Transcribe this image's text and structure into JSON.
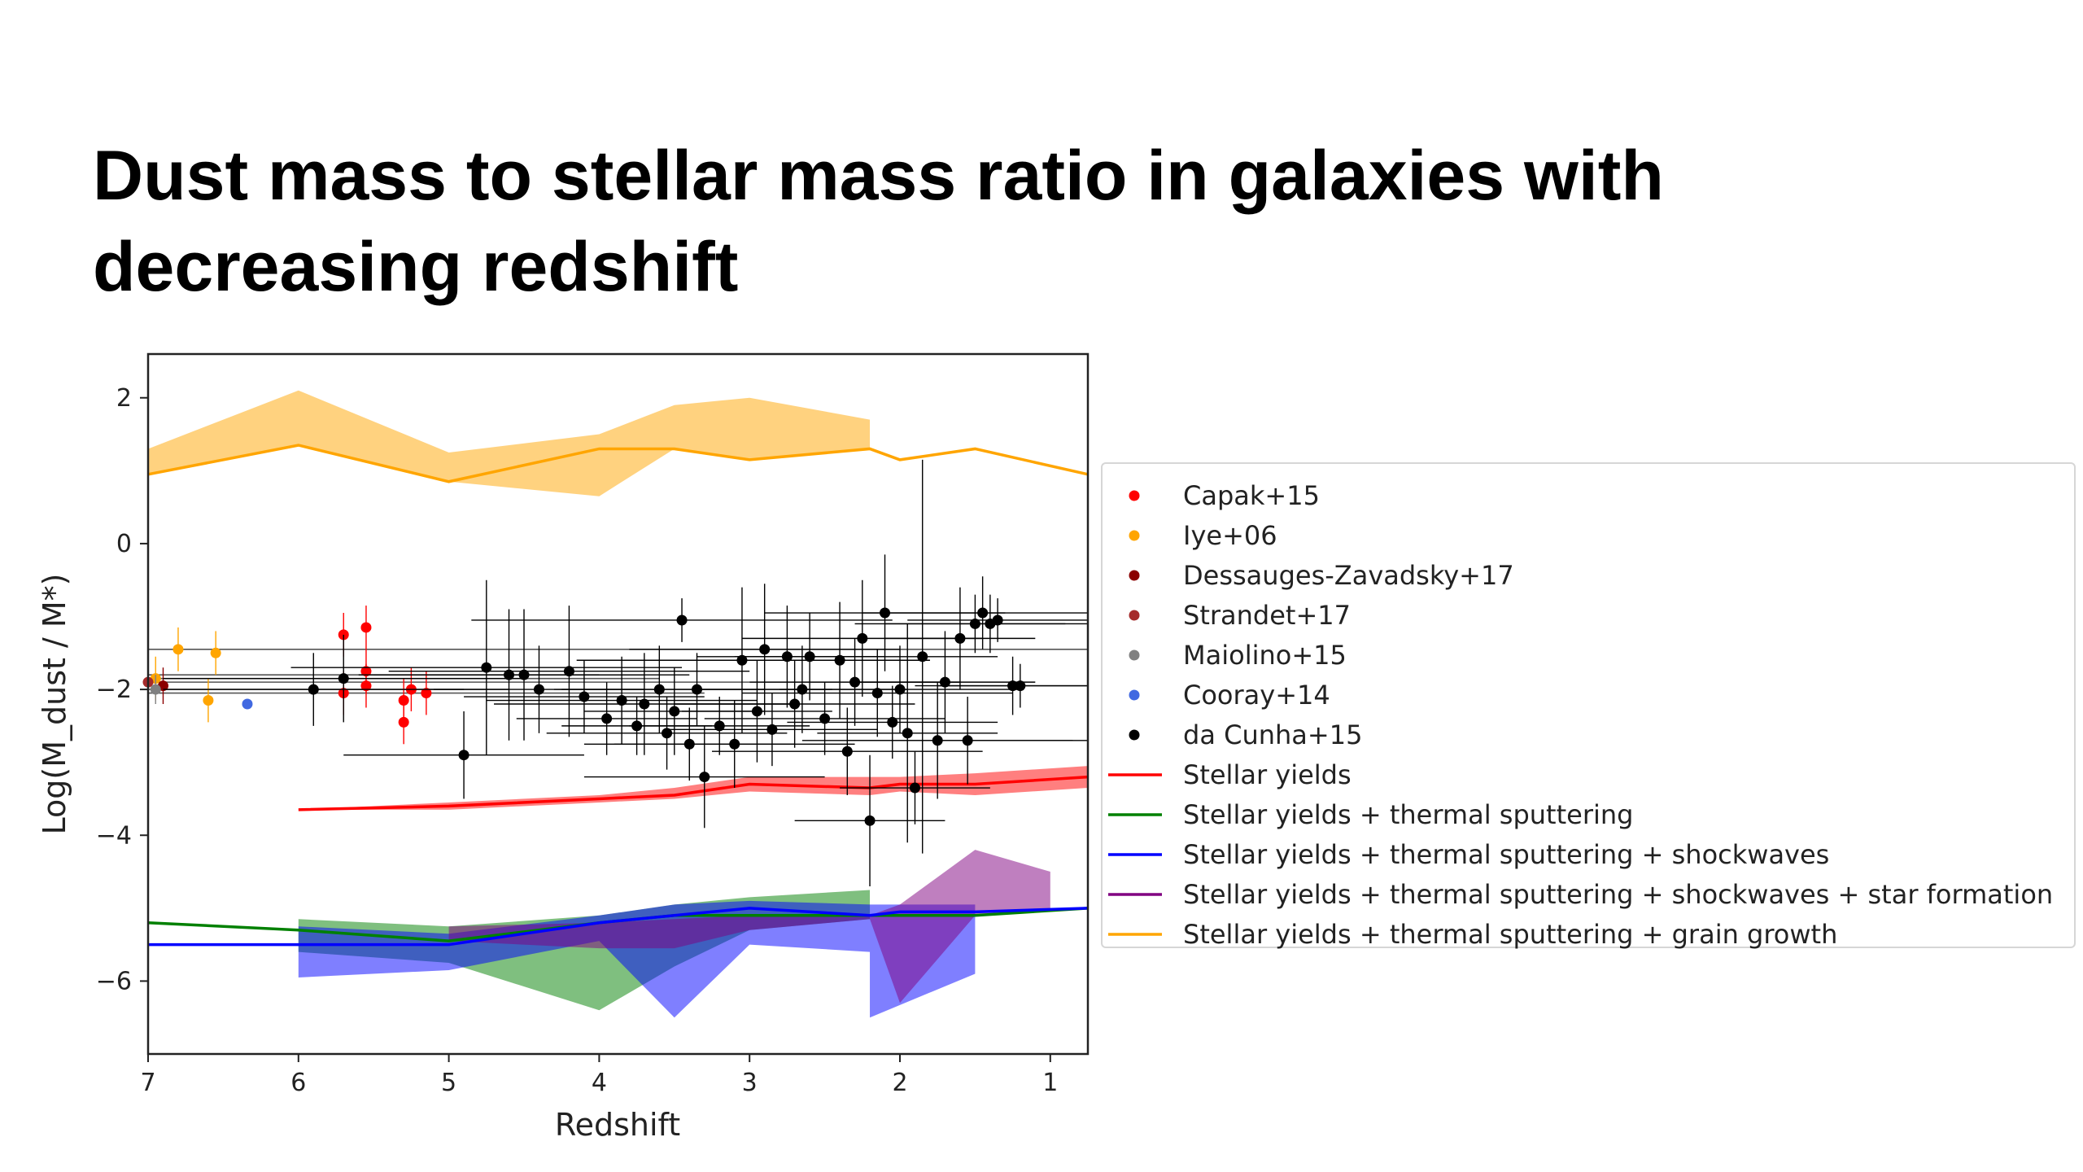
{
  "slide": {
    "title": "Dust mass to stellar mass ratio in galaxies with decreasing redshift"
  },
  "chart_data": {
    "type": "line",
    "xlabel": "Redshift",
    "ylabel": "Log(M_dust / M*)",
    "xlim": [
      7,
      0.75
    ],
    "ylim": [
      -7,
      2.6
    ],
    "x_ticks": [
      7,
      6,
      5,
      4,
      3,
      2,
      1
    ],
    "y_ticks": [
      2,
      0,
      -2,
      -4,
      -6
    ],
    "grid": false,
    "legend_placement": "outside-right",
    "legend": [
      {
        "label": "Capak+15",
        "kind": "marker",
        "color": "#ff0000"
      },
      {
        "label": "Iye+06",
        "kind": "marker",
        "color": "#ffa500"
      },
      {
        "label": "Dessauges-Zavadsky+17",
        "kind": "marker",
        "color": "#8b0000"
      },
      {
        "label": "Strandet+17",
        "kind": "marker",
        "color": "#a52a2a"
      },
      {
        "label": "Maiolino+15",
        "kind": "marker",
        "color": "#808080"
      },
      {
        "label": "Cooray+14",
        "kind": "marker",
        "color": "#4169e1"
      },
      {
        "label": "da Cunha+15",
        "kind": "marker",
        "color": "#000000"
      },
      {
        "label": "Stellar yields",
        "kind": "line",
        "color": "#ff0000"
      },
      {
        "label": "Stellar yields + thermal sputtering",
        "kind": "line",
        "color": "#008000"
      },
      {
        "label": "Stellar yields + thermal sputtering + shockwaves",
        "kind": "line",
        "color": "#0000ff"
      },
      {
        "label": "Stellar yields + thermal sputtering + shockwaves + star formation",
        "kind": "line",
        "color": "#800080"
      },
      {
        "label": "Stellar yields + thermal sputtering + grain growth",
        "kind": "line",
        "color": "#ffa500"
      }
    ],
    "model_lines": [
      {
        "name": "Stellar yields + thermal sputtering + grain growth",
        "color": "#ffa500",
        "x": [
          7,
          6,
          5,
          4,
          3.5,
          3,
          2.2,
          2,
          1.5,
          0.75
        ],
        "y": [
          0.95,
          1.35,
          0.85,
          1.3,
          1.3,
          1.15,
          1.3,
          1.15,
          1.3,
          0.95
        ]
      },
      {
        "name": "Stellar yields",
        "color": "#ff0000",
        "x": [
          6,
          5,
          4,
          3.5,
          3,
          2.2,
          2,
          1.5,
          0.75
        ],
        "y": [
          -3.65,
          -3.6,
          -3.5,
          -3.45,
          -3.3,
          -3.35,
          -3.3,
          -3.3,
          -3.2
        ]
      },
      {
        "name": "Stellar yields + thermal sputtering",
        "color": "#008000",
        "x": [
          7,
          6,
          5,
          4,
          3.5,
          3,
          2.2,
          2,
          1.5,
          0.75
        ],
        "y": [
          -5.2,
          -5.3,
          -5.45,
          -5.2,
          -5.1,
          -5.1,
          -5.1,
          -5.1,
          -5.1,
          -5.0
        ]
      },
      {
        "name": "Stellar yields + thermal sputtering + shockwaves",
        "color": "#0000ff",
        "x": [
          7,
          6,
          5,
          4,
          3.5,
          3,
          2.2,
          2,
          1.5,
          0.75
        ],
        "y": [
          -5.5,
          -5.5,
          -5.5,
          -5.2,
          -5.1,
          -5.0,
          -5.1,
          -5.05,
          -5.05,
          -5.0
        ]
      }
    ],
    "bands": [
      {
        "name": "Stellar yields + thermal sputtering + grain growth",
        "color": "#ffa500",
        "x": [
          7,
          6,
          5,
          4,
          3.5,
          3,
          2.2,
          2.2
        ],
        "upper": [
          1.3,
          2.1,
          1.25,
          1.5,
          1.9,
          2.0,
          1.7,
          1.7
        ],
        "lower": [
          0.95,
          1.35,
          0.85,
          0.65,
          1.3,
          1.15,
          1.3,
          1.3
        ]
      },
      {
        "name": "Stellar yields",
        "color": "#ff0000",
        "x": [
          6,
          5,
          4,
          3.5,
          3,
          2.2,
          2,
          1.5,
          0.75
        ],
        "upper": [
          -3.65,
          -3.55,
          -3.45,
          -3.35,
          -3.2,
          -3.2,
          -3.2,
          -3.15,
          -3.05
        ],
        "lower": [
          -3.65,
          -3.65,
          -3.55,
          -3.5,
          -3.4,
          -3.45,
          -3.4,
          -3.45,
          -3.35
        ]
      },
      {
        "name": "Stellar yields + thermal sputtering",
        "color": "#008000",
        "x": [
          6,
          5,
          4,
          3.5,
          3,
          2.2
        ],
        "upper": [
          -5.15,
          -5.25,
          -5.1,
          -4.95,
          -4.85,
          -4.75
        ],
        "lower": [
          -5.6,
          -5.75,
          -6.4,
          -5.8,
          -5.3,
          -5.15
        ]
      },
      {
        "name": "Stellar yields + thermal sputtering + shockwaves",
        "color": "#0000ff",
        "x": [
          6,
          5,
          4,
          3.5,
          3,
          2.2,
          2.2,
          1.5
        ],
        "upper": [
          -5.25,
          -5.35,
          -5.1,
          -4.95,
          -4.9,
          -4.95,
          -4.95,
          -4.95
        ],
        "lower": [
          -5.95,
          -5.85,
          -5.45,
          -6.5,
          -5.5,
          -5.6,
          -6.5,
          -5.9
        ]
      },
      {
        "name": "Stellar yields + thermal sputtering + shockwaves + star formation",
        "color": "#800080",
        "x": [
          5,
          4,
          3.5,
          3,
          2.2,
          2,
          1.5,
          1
        ],
        "upper": [
          -5.25,
          -5.2,
          -5.15,
          -5.1,
          -5.1,
          -4.95,
          -4.2,
          -4.5
        ],
        "lower": [
          -5.45,
          -5.55,
          -5.55,
          -5.3,
          -5.15,
          -6.3,
          -5.1,
          -5.0
        ]
      }
    ],
    "observations": [
      {
        "name": "Capak+15",
        "color": "#ff0000",
        "points": [
          {
            "x": 5.7,
            "y": -1.25,
            "yerr": 0.3
          },
          {
            "x": 5.55,
            "y": -1.15,
            "yerr": 0.3
          },
          {
            "x": 5.7,
            "y": -2.05,
            "yerr": 0.3
          },
          {
            "x": 5.55,
            "y": -1.75,
            "yerr": 0.3
          },
          {
            "x": 5.55,
            "y": -1.95,
            "yerr": 0.3
          },
          {
            "x": 5.3,
            "y": -2.15,
            "yerr": 0.3
          },
          {
            "x": 5.3,
            "y": -2.45,
            "yerr": 0.3
          },
          {
            "x": 5.25,
            "y": -2.0,
            "yerr": 0.3
          },
          {
            "x": 5.15,
            "y": -2.05,
            "yerr": 0.3
          }
        ]
      },
      {
        "name": "Iye+06",
        "color": "#ffa500",
        "points": [
          {
            "x": 6.95,
            "y": -1.85,
            "yerr": 0.3
          },
          {
            "x": 6.8,
            "y": -1.45,
            "yerr": 0.3
          },
          {
            "x": 6.6,
            "y": -2.15,
            "yerr": 0.3
          },
          {
            "x": 6.55,
            "y": -1.5,
            "yerr": 0.3
          }
        ]
      },
      {
        "name": "Dessauges-Zavadsky+17",
        "color": "#8b0000",
        "points": [
          {
            "x": 6.9,
            "y": -1.95,
            "yerr": 0.25
          }
        ]
      },
      {
        "name": "Strandet+17",
        "color": "#a52a2a",
        "points": [
          {
            "x": 7.0,
            "y": -1.9,
            "yerr": 0.25
          }
        ]
      },
      {
        "name": "Maiolino+15",
        "color": "#808080",
        "points": [
          {
            "x": 6.95,
            "y": -2.0,
            "yerr": 0.2
          }
        ]
      },
      {
        "name": "Cooray+14",
        "color": "#4169e1",
        "points": [
          {
            "x": 6.34,
            "y": -2.2,
            "yerr": 0.0
          }
        ]
      },
      {
        "name": "da Cunha+15",
        "color": "#000000",
        "points": [
          {
            "x": 5.9,
            "y": -2.0,
            "xerr": 1.0,
            "yerr": 0.5
          },
          {
            "x": 5.7,
            "y": -1.85,
            "xerr": 1.2,
            "yerr": 0.6
          },
          {
            "x": 4.9,
            "y": -2.9,
            "xerr": 0.8,
            "yerr": 0.6
          },
          {
            "x": 4.75,
            "y": -1.7,
            "xerr": 1.3,
            "yerr": 1.2
          },
          {
            "x": 4.6,
            "y": -1.8,
            "xerr": 0.9,
            "yerr": 0.9
          },
          {
            "x": 4.5,
            "y": -1.8,
            "xerr": 1.1,
            "yerr": 0.9
          },
          {
            "x": 4.4,
            "y": -2.0,
            "xerr": 0.7,
            "yerr": 0.6
          },
          {
            "x": 4.2,
            "y": -1.75,
            "xerr": 1.2,
            "yerr": 0.9
          },
          {
            "x": 4.1,
            "y": -2.1,
            "xerr": 0.8,
            "yerr": 0.5
          },
          {
            "x": 3.95,
            "y": -2.4,
            "xerr": 0.6,
            "yerr": 0.5
          },
          {
            "x": 3.85,
            "y": -2.15,
            "xerr": 0.9,
            "yerr": 0.6
          },
          {
            "x": 3.75,
            "y": -2.5,
            "xerr": 0.5,
            "yerr": 0.4
          },
          {
            "x": 3.7,
            "y": -2.2,
            "xerr": 1.0,
            "yerr": 0.7
          },
          {
            "x": 3.6,
            "y": -2.0,
            "xerr": 0.7,
            "yerr": 0.6
          },
          {
            "x": 3.55,
            "y": -2.6,
            "xerr": 0.8,
            "yerr": 0.5
          },
          {
            "x": 3.5,
            "y": -2.3,
            "xerr": 0.6,
            "yerr": 0.6
          },
          {
            "x": 3.45,
            "y": -1.05,
            "xerr": 1.4,
            "yerr": 0.3
          },
          {
            "x": 3.4,
            "y": -2.75,
            "xerr": 0.7,
            "yerr": 0.5
          },
          {
            "x": 3.35,
            "y": -2.0,
            "xerr": 0.9,
            "yerr": 0.5
          },
          {
            "x": 3.3,
            "y": -3.2,
            "xerr": 0.8,
            "yerr": 0.7
          },
          {
            "x": 3.2,
            "y": -2.5,
            "xerr": 0.6,
            "yerr": 0.4
          },
          {
            "x": 3.1,
            "y": -2.75,
            "xerr": 0.8,
            "yerr": 0.6
          },
          {
            "x": 3.05,
            "y": -1.6,
            "xerr": 1.1,
            "yerr": 1.0
          },
          {
            "x": 2.95,
            "y": -2.3,
            "xerr": 0.5,
            "yerr": 0.7
          },
          {
            "x": 2.9,
            "y": -1.45,
            "xerr": 0.9,
            "yerr": 0.9
          },
          {
            "x": 2.85,
            "y": -2.55,
            "xerr": 0.7,
            "yerr": 0.5
          },
          {
            "x": 2.75,
            "y": -1.55,
            "xerr": 0.6,
            "yerr": 0.7
          },
          {
            "x": 2.7,
            "y": -2.2,
            "xerr": 0.8,
            "yerr": 0.6
          },
          {
            "x": 2.65,
            "y": -2.0,
            "xerr": 0.7,
            "yerr": 0.6
          },
          {
            "x": 2.6,
            "y": -1.55,
            "xerr": 0.5,
            "yerr": 0.6
          },
          {
            "x": 2.5,
            "y": -2.4,
            "xerr": 0.8,
            "yerr": 0.5
          },
          {
            "x": 2.4,
            "y": -1.6,
            "xerr": 0.6,
            "yerr": 0.8
          },
          {
            "x": 2.35,
            "y": -2.85,
            "xerr": 0.9,
            "yerr": 0.6
          },
          {
            "x": 2.3,
            "y": -1.9,
            "xerr": 0.7,
            "yerr": 0.6
          },
          {
            "x": 2.25,
            "y": -1.3,
            "xerr": 0.8,
            "yerr": 0.8
          },
          {
            "x": 2.2,
            "y": -3.8,
            "xerr": 0.5,
            "yerr": 0.9
          },
          {
            "x": 2.15,
            "y": -2.05,
            "xerr": 0.9,
            "yerr": 0.6
          },
          {
            "x": 2.1,
            "y": -0.95,
            "xerr": 0.8,
            "yerr": 0.8
          },
          {
            "x": 2.05,
            "y": -2.45,
            "xerr": 0.7,
            "yerr": 0.5
          },
          {
            "x": 2.0,
            "y": -2.0,
            "xerr": 0.8,
            "yerr": 0.6
          },
          {
            "x": 1.95,
            "y": -2.6,
            "xerr": 0.6,
            "yerr": 1.5
          },
          {
            "x": 1.9,
            "y": -3.35,
            "xerr": 0.5,
            "yerr": 0.5
          },
          {
            "x": 1.85,
            "y": -1.55,
            "xerr": 0.5,
            "yerr": 2.7
          },
          {
            "x": 1.75,
            "y": -2.7,
            "xerr": 0.9,
            "yerr": 0.8
          },
          {
            "x": 1.7,
            "y": -1.9,
            "xerr": 0.6,
            "yerr": 0.7
          },
          {
            "x": 1.6,
            "y": -1.3,
            "xerr": 0.5,
            "yerr": 0.7
          },
          {
            "x": 1.55,
            "y": -2.7,
            "xerr": 0.8,
            "yerr": 0.6
          },
          {
            "x": 1.5,
            "y": -1.1,
            "xerr": 0.6,
            "yerr": 0.4
          },
          {
            "x": 1.45,
            "y": -0.95,
            "xerr": 0.8,
            "yerr": 0.5
          },
          {
            "x": 1.4,
            "y": -1.1,
            "xerr": 0.9,
            "yerr": 0.4
          },
          {
            "x": 1.35,
            "y": -1.05,
            "xerr": 0.6,
            "yerr": 0.3
          },
          {
            "x": 1.25,
            "y": -1.95,
            "xerr": 0.5,
            "yerr": 0.4
          },
          {
            "x": 1.2,
            "y": -1.95,
            "xerr": 0.7,
            "yerr": 0.3
          }
        ]
      }
    ],
    "limit_lines": [
      {
        "y": -1.45,
        "x0": 7,
        "x1": 0.75
      },
      {
        "y": -1.8,
        "x0": 7,
        "x1": 4.0
      },
      {
        "y": -1.85,
        "x0": 7,
        "x1": 3.6
      },
      {
        "y": -1.9,
        "x0": 7,
        "x1": 3.0
      },
      {
        "y": -2.0,
        "x0": 7,
        "x1": 4.6
      },
      {
        "y": -2.05,
        "x0": 7,
        "x1": 3.3
      }
    ]
  }
}
